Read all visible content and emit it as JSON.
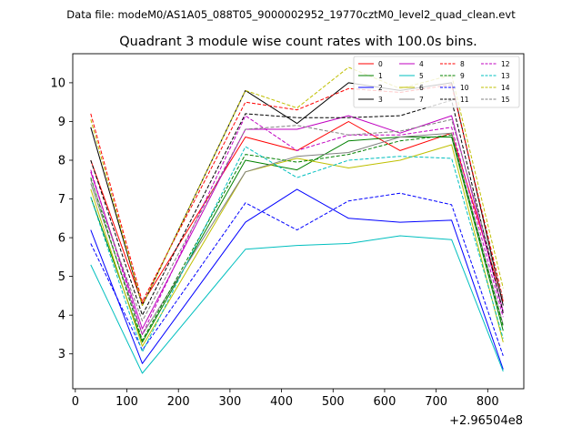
{
  "suptitle": "Data file: modeM0/AS1A05_088T05_9000002952_19770cztM0_level2_quad_clean.evt",
  "chart_data": {
    "type": "line",
    "title": "Quadrant 3 module wise count rates with 100.0s bins.",
    "xlabel": "",
    "ylabel": "",
    "x_offset_label": "+2.96504e8",
    "xlim": [
      -5,
      870
    ],
    "ylim": [
      2.1,
      10.75
    ],
    "xticks": [
      0,
      100,
      200,
      300,
      400,
      500,
      600,
      700,
      800
    ],
    "xtick_labels": [
      "0",
      "100",
      "200",
      "300",
      "400",
      "500",
      "600",
      "700",
      "800"
    ],
    "yticks": [
      3,
      4,
      5,
      6,
      7,
      8,
      9,
      10
    ],
    "ytick_labels": [
      "3",
      "4",
      "5",
      "6",
      "7",
      "8",
      "9",
      "10"
    ],
    "legend_location": "upper-right",
    "x": [
      30,
      130,
      330,
      430,
      530,
      630,
      730,
      830
    ],
    "series": [
      {
        "name": "0",
        "color": "#ff0000",
        "dash": "solid",
        "values": [
          8.0,
          4.3,
          8.6,
          8.25,
          9.0,
          8.25,
          8.7,
          4.35
        ]
      },
      {
        "name": "1",
        "color": "#008000",
        "dash": "solid",
        "values": [
          7.05,
          3.3,
          8.0,
          7.75,
          8.5,
          8.6,
          8.6,
          3.6
        ]
      },
      {
        "name": "2",
        "color": "#0000ff",
        "dash": "solid",
        "values": [
          6.2,
          2.75,
          6.4,
          7.25,
          6.5,
          6.4,
          6.45,
          2.6
        ]
      },
      {
        "name": "3",
        "color": "#000000",
        "dash": "solid",
        "values": [
          8.85,
          4.25,
          9.8,
          8.95,
          10.0,
          9.8,
          10.0,
          4.25
        ]
      },
      {
        "name": "4",
        "color": "#c000c0",
        "dash": "solid",
        "values": [
          7.7,
          3.65,
          8.8,
          8.8,
          9.15,
          8.7,
          9.15,
          4.1
        ]
      },
      {
        "name": "5",
        "color": "#00bfbf",
        "dash": "solid",
        "values": [
          5.3,
          2.5,
          5.7,
          5.8,
          5.85,
          6.05,
          5.95,
          2.55
        ]
      },
      {
        "name": "6",
        "color": "#bfbf00",
        "dash": "solid",
        "values": [
          7.25,
          3.2,
          7.7,
          8.05,
          7.8,
          8.0,
          8.4,
          3.3
        ]
      },
      {
        "name": "7",
        "color": "#808080",
        "dash": "solid",
        "values": [
          7.4,
          3.5,
          7.7,
          8.1,
          8.2,
          8.6,
          8.7,
          3.75
        ]
      },
      {
        "name": "8",
        "color": "#ff0000",
        "dash": "dashed",
        "values": [
          9.2,
          4.35,
          9.5,
          9.3,
          9.85,
          9.75,
          9.95,
          4.4
        ]
      },
      {
        "name": "9",
        "color": "#008000",
        "dash": "dashed",
        "values": [
          7.55,
          3.35,
          8.15,
          7.95,
          8.15,
          8.5,
          8.65,
          3.7
        ]
      },
      {
        "name": "10",
        "color": "#0000ff",
        "dash": "dashed",
        "values": [
          5.85,
          3.1,
          6.9,
          6.2,
          6.95,
          7.15,
          6.85,
          2.95
        ]
      },
      {
        "name": "11",
        "color": "#000000",
        "dash": "dashed",
        "values": [
          8.0,
          4.0,
          9.2,
          9.1,
          9.1,
          9.15,
          9.55,
          4.05
        ]
      },
      {
        "name": "12",
        "color": "#c000c0",
        "dash": "dashed",
        "values": [
          7.75,
          3.5,
          9.15,
          8.25,
          8.65,
          8.65,
          8.85,
          3.95
        ]
      },
      {
        "name": "13",
        "color": "#00bfbf",
        "dash": "dashed",
        "values": [
          7.05,
          3.05,
          8.35,
          7.55,
          8.0,
          8.1,
          8.05,
          3.4
        ]
      },
      {
        "name": "14",
        "color": "#bfbf00",
        "dash": "dashed",
        "values": [
          9.05,
          4.25,
          9.8,
          9.35,
          10.4,
          9.85,
          10.2,
          4.7
        ]
      },
      {
        "name": "15",
        "color": "#808080",
        "dash": "dashed",
        "values": [
          7.5,
          3.85,
          8.8,
          8.9,
          8.65,
          8.75,
          9.05,
          4.4
        ]
      }
    ]
  }
}
